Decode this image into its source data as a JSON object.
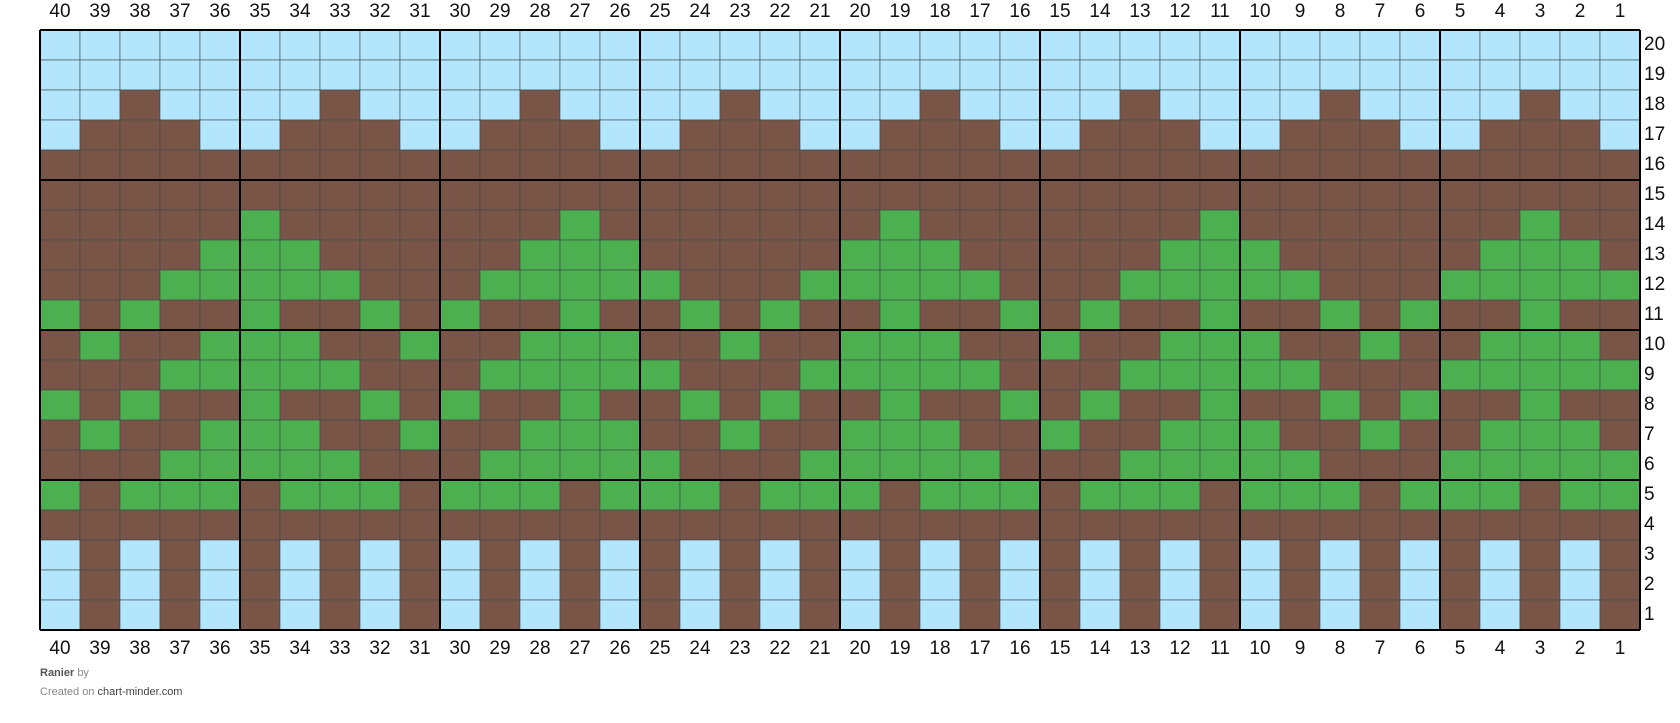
{
  "chart": {
    "columns": [
      40,
      39,
      38,
      37,
      36,
      35,
      34,
      33,
      32,
      31,
      30,
      29,
      28,
      27,
      26,
      25,
      24,
      23,
      22,
      21,
      20,
      19,
      18,
      17,
      16,
      15,
      14,
      13,
      12,
      11,
      10,
      9,
      8,
      7,
      6,
      5,
      4,
      3,
      2,
      1
    ],
    "rows": [
      20,
      19,
      18,
      17,
      16,
      15,
      14,
      13,
      12,
      11,
      10,
      9,
      8,
      7,
      6,
      5,
      4,
      3,
      2,
      1
    ],
    "palette": {
      "L": "#b3e5fc",
      "B": "#795548",
      "G": "#4caf50"
    },
    "cells": [
      "LLLLLLLLLLLLLLLLLLLLLLLLLLLLLLLLLLLLLLLL",
      "LLLLLLLLLLLLLLLLLLLLLLLLLLLLLLLLLLLLLLLL",
      "LLBLLLLBLLLLBLLLLBLLLLBLLLLBLLLLBLLLLBLL",
      "LBBBLLBBBLLBBBLLBBBLLBBBLLBBBLLBBBLLBBBL",
      "BBBBBBBBBBBBBBBBBBBBBBBBBBBBBBBBBBBBBBBB",
      "BBBBBBBBBBBBBBBBBBBBBBBBBBBBBBBBBBBBBBBB",
      "BBBBBGBBBBBBBGBBBBBBBGBBBBBBBGBBBBBBBGBB",
      "BBBBGGGBBBBBGGGBBBBBGGGBBBBBGGGBBBBBGGGB",
      "BBBGGGGGBBBGGGGGBBBGGGGGBBBGGGGGBBBGGGGG",
      "GBGBBGBBGBGBBGBBGBGBBGBBGBGBBGBBGBGBBGBB",
      "BGBBGGGBBGBBGGGBBGBBGGGBBGBBGGGBBGBBGGGB",
      "BBBGGGGGBBBGGGGGBBBGGGGGBBBGGGGGBBBGGGGG",
      "GBGBBGBBGBGBBGBBGBGBBGBBGBGBBGBBGBGBBGBB",
      "BGBBGGGBBGBBGGGBBGBBGGGBBGBBGGGBBGBBGGGB",
      "BBBGGGGGBBBGGGGGBBBGGGGGBBBGGGGGBBBGGGGG",
      "GBGGGBGGGBGGGBGGGBGGGBGGGBGGGBGGGBGGGBGG",
      "BBBBBBBBBBBBBBBBBBBBBBBBBBBBBBBBBBBBBBBB",
      "LBLBLBLBLBLBLBLBLBLBLBLBLBLBLBLBLBLBLBLB",
      "LBLBLBLBLBLBLBLBLBLBLBLBLBLBLBLBLBLBLBLB",
      "LBLBLBLBLBLBLBLBLBLBLBLBLBLBLBLBLBLBLBLB"
    ]
  },
  "footer": {
    "title": "Ranier",
    "by": "by",
    "created": "Created on",
    "site": "chart-minder.com"
  }
}
